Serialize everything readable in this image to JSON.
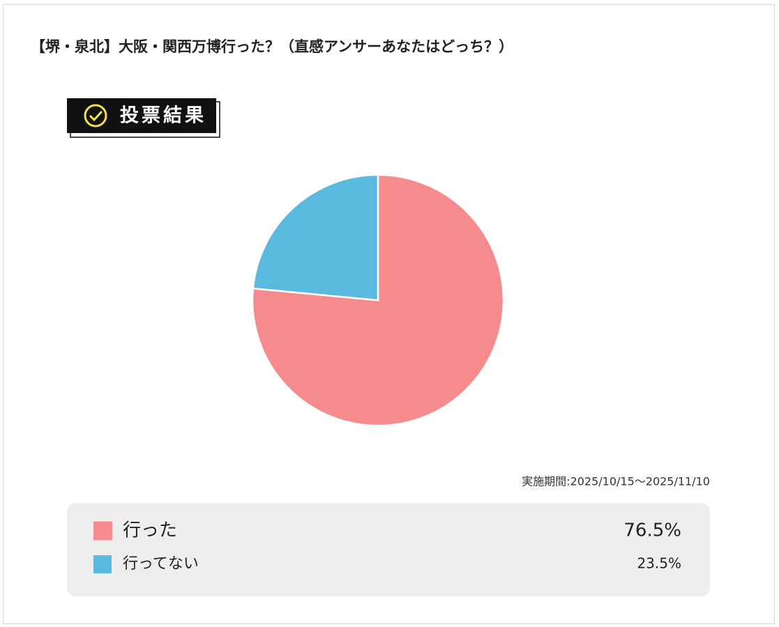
{
  "chart_data": {
    "type": "pie",
    "title": "【堺・泉北】大阪・関西万博行った？（直感アンサーあなたはどっち？）",
    "badge": "投票結果",
    "note": "実施期間:2025/10/15～2025/11/10",
    "categories": [
      "行った",
      "行ってない"
    ],
    "values": [
      76.5,
      23.5
    ],
    "value_labels": [
      "76.5%",
      "23.5%"
    ],
    "colors": [
      "#f58b8c",
      "#5ab9df"
    ]
  }
}
